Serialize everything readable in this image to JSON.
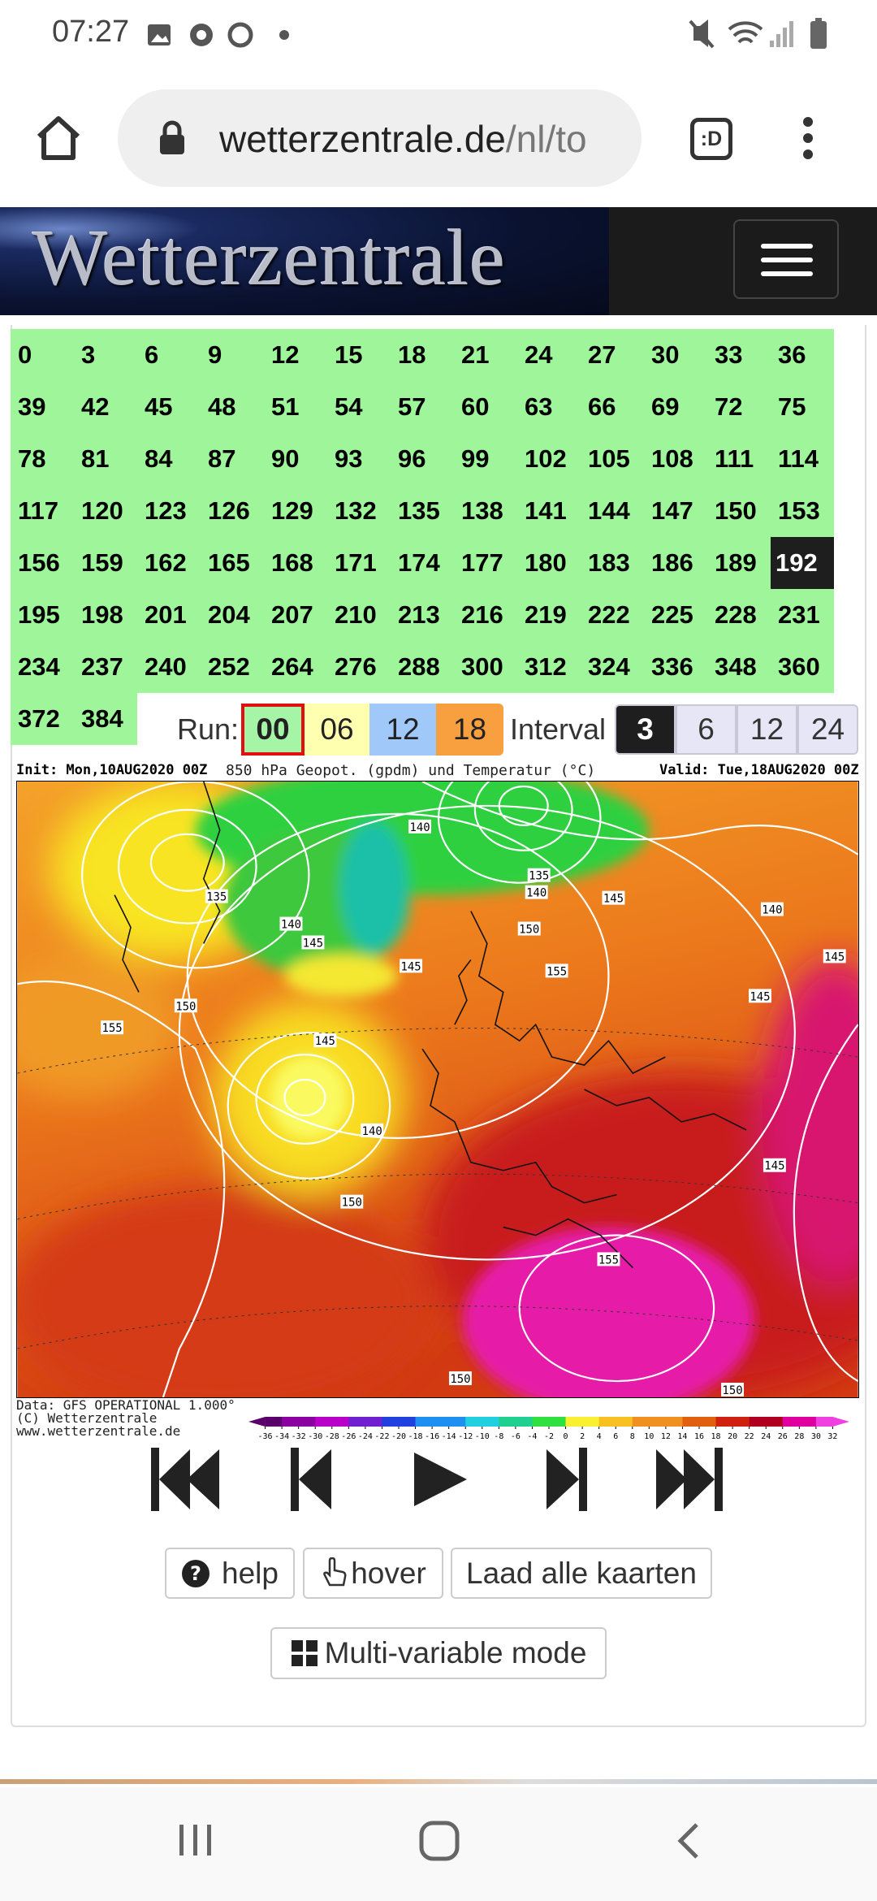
{
  "status_bar": {
    "time": "07:27"
  },
  "browser": {
    "url_host": "wetterzentrale.de",
    "url_path": "/nl/to",
    "tab_icon": ":D"
  },
  "site": {
    "logo": "Wetterzentrale"
  },
  "hours": {
    "values": [
      0,
      3,
      6,
      9,
      12,
      15,
      18,
      21,
      24,
      27,
      30,
      33,
      36,
      39,
      42,
      45,
      48,
      51,
      54,
      57,
      60,
      63,
      66,
      69,
      72,
      75,
      78,
      81,
      84,
      87,
      90,
      93,
      96,
      99,
      102,
      105,
      108,
      111,
      114,
      117,
      120,
      123,
      126,
      129,
      132,
      135,
      138,
      141,
      144,
      147,
      150,
      153,
      156,
      159,
      162,
      165,
      168,
      171,
      174,
      177,
      180,
      183,
      186,
      189,
      192,
      195,
      198,
      201,
      204,
      207,
      210,
      213,
      216,
      219,
      222,
      225,
      228,
      231,
      234,
      237,
      240,
      252,
      264,
      276,
      288,
      300,
      312,
      324,
      336,
      348,
      360,
      372,
      384
    ],
    "selected": 192
  },
  "run": {
    "label": "Run:",
    "options": [
      {
        "label": "00",
        "color": "#a6f5a6",
        "selected": true
      },
      {
        "label": "06",
        "color": "#ffffb0"
      },
      {
        "label": "12",
        "color": "#a0c8f8"
      },
      {
        "label": "18",
        "color": "#f8a040"
      }
    ]
  },
  "interval": {
    "label": "Interval",
    "options": [
      {
        "label": "3",
        "selected": true
      },
      {
        "label": "6"
      },
      {
        "label": "12"
      },
      {
        "label": "24"
      }
    ]
  },
  "map": {
    "init": "Init: Mon,10AUG2020 00Z",
    "title": "850 hPa Geopot. (gpdm) und Temperatur (°C)",
    "valid": "Valid: Tue,18AUG2020 00Z",
    "contour_labels": [
      135,
      140,
      145,
      140,
      135,
      140,
      150,
      145,
      155,
      140,
      145,
      145,
      150,
      155,
      145,
      140,
      150,
      145,
      155,
      150,
      150,
      145
    ],
    "source": [
      "Data: GFS OPERATIONAL 1.000°",
      "(C) Wetterzentrale",
      "www.wetterzentrale.de"
    ],
    "colorbar_ticks": [
      -36,
      -34,
      -32,
      -30,
      -28,
      -26,
      -24,
      -22,
      -20,
      -18,
      -16,
      -14,
      -12,
      -10,
      -8,
      -6,
      -4,
      -2,
      0,
      2,
      4,
      6,
      8,
      10,
      12,
      14,
      16,
      18,
      20,
      22,
      24,
      26,
      28,
      30,
      32
    ]
  },
  "buttons": {
    "help": "help",
    "hover": "hover",
    "load": "Laad alle kaarten",
    "multi": "Multi-variable mode"
  }
}
